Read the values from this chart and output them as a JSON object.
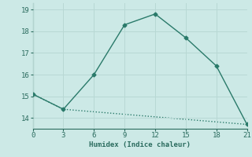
{
  "xlabel": "Humidex (Indice chaleur)",
  "line1_x": [
    0,
    3,
    6,
    9,
    12,
    15,
    18,
    21
  ],
  "line1_y": [
    15.1,
    14.4,
    16.0,
    18.3,
    18.8,
    17.7,
    16.4,
    13.7
  ],
  "line2_x": [
    0,
    3,
    21
  ],
  "line2_y": [
    15.1,
    14.4,
    13.7
  ],
  "line_color": "#2a7a6a",
  "bg_color": "#cce9e6",
  "grid_color": "#b8d8d4",
  "xlim": [
    0,
    21
  ],
  "ylim": [
    13.5,
    19.3
  ],
  "xticks": [
    0,
    3,
    6,
    9,
    12,
    15,
    18,
    21
  ],
  "yticks": [
    14,
    15,
    16,
    17,
    18,
    19
  ],
  "marker": "D",
  "markersize": 2.5,
  "linewidth": 1.0,
  "font_color": "#2a6b5e",
  "tick_labelsize": 6.5
}
